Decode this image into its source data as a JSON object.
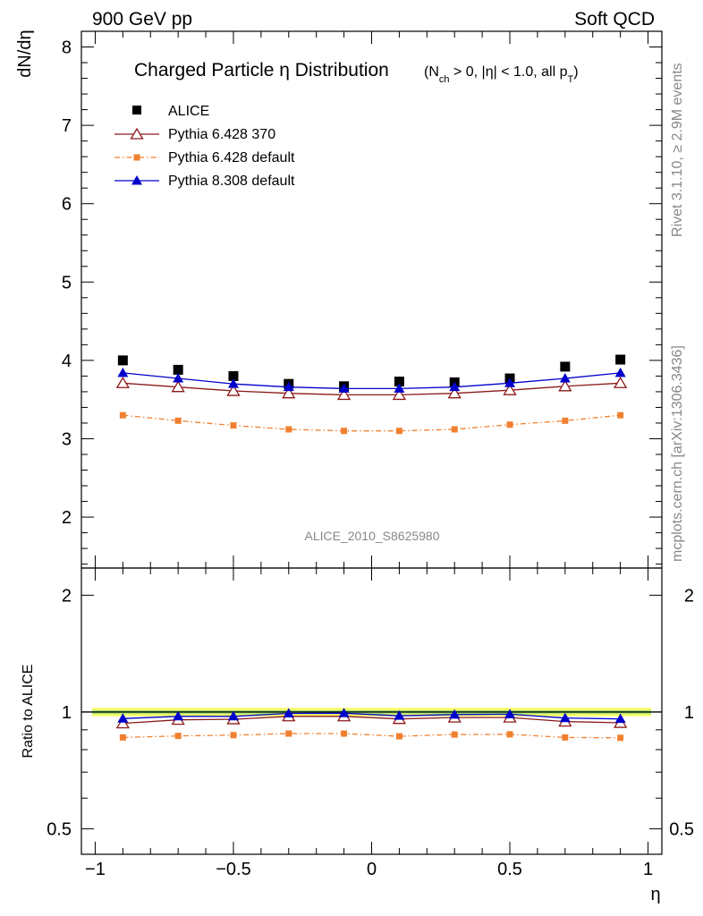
{
  "header": {
    "left": "900 GeV pp",
    "right": "Soft QCD"
  },
  "side_text": {
    "rivet": "Rivet 3.1.10, ≥ 2.9M events",
    "mcplots": "mcplots.cern.ch [arXiv:1306.3436]"
  },
  "chart_data": [
    {
      "type": "scatter",
      "title": "Charged Particle η Distribution",
      "subtitle_parts": {
        "open": "(N",
        "sub1": "ch",
        "mid": " > 0, |η| < 1.0, all p",
        "sub2": "T",
        "close": ")"
      },
      "ylabel": "dN/dη",
      "ylim": [
        1.35,
        8.2
      ],
      "yticks": [
        2,
        3,
        4,
        5,
        6,
        7,
        8
      ],
      "xlim": [
        -1.05,
        1.05
      ],
      "watermark": "ALICE_2010_S8625980",
      "legend_position": "top-left",
      "x": [
        -0.9,
        -0.7,
        -0.5,
        -0.3,
        -0.1,
        0.1,
        0.3,
        0.5,
        0.7,
        0.9
      ],
      "series": [
        {
          "name": "ALICE",
          "color": "#000000",
          "marker": "square",
          "line": "none",
          "values": [
            4.0,
            3.88,
            3.8,
            3.7,
            3.67,
            3.73,
            3.72,
            3.77,
            3.92,
            4.01
          ]
        },
        {
          "name": "Pythia 6.428 370",
          "color": "#8b1a1a",
          "marker": "open-triangle",
          "line": "solid",
          "values": [
            3.71,
            3.66,
            3.61,
            3.58,
            3.56,
            3.56,
            3.58,
            3.62,
            3.67,
            3.71
          ]
        },
        {
          "name": "Pythia 6.428 default",
          "color": "#f08030",
          "marker": "small-square",
          "line": "dashdot",
          "values": [
            3.3,
            3.23,
            3.17,
            3.12,
            3.1,
            3.1,
            3.12,
            3.18,
            3.23,
            3.3
          ]
        },
        {
          "name": "Pythia 8.308 default",
          "color": "#0000cc",
          "marker": "triangle",
          "line": "solid",
          "values": [
            3.84,
            3.77,
            3.7,
            3.66,
            3.64,
            3.64,
            3.66,
            3.71,
            3.77,
            3.84
          ]
        }
      ]
    },
    {
      "type": "scatter",
      "ylabel": "Ratio to ALICE",
      "xlabel": "η",
      "ylim": [
        0.43,
        2.35
      ],
      "yticks": [
        0.5,
        1,
        2
      ],
      "yticklabels": [
        "0.5",
        "1",
        "2"
      ],
      "xlim": [
        -1.05,
        1.05
      ],
      "xticks": [
        -1,
        -0.5,
        0,
        0.5,
        1
      ],
      "xticklabels": [
        "−1",
        "−0.5",
        "0",
        "0.5",
        "1"
      ],
      "band": {
        "low": 0.975,
        "high": 1.025,
        "inner_low": 0.988,
        "inner_high": 1.012
      },
      "x": [
        -0.9,
        -0.7,
        -0.5,
        -0.3,
        -0.1,
        0.1,
        0.3,
        0.5,
        0.7,
        0.9
      ],
      "series": [
        {
          "name": "Pythia 6.428 370",
          "color": "#8b1a1a",
          "marker": "open-triangle",
          "line": "solid",
          "values": [
            0.935,
            0.955,
            0.958,
            0.975,
            0.975,
            0.96,
            0.968,
            0.968,
            0.945,
            0.938
          ]
        },
        {
          "name": "Pythia 6.428 default",
          "color": "#f08030",
          "marker": "small-square",
          "line": "dashdot",
          "values": [
            0.86,
            0.868,
            0.872,
            0.88,
            0.88,
            0.866,
            0.875,
            0.876,
            0.86,
            0.858
          ]
        },
        {
          "name": "Pythia 8.308 default",
          "color": "#0000cc",
          "marker": "triangle",
          "line": "solid",
          "values": [
            0.962,
            0.975,
            0.975,
            0.992,
            0.993,
            0.978,
            0.985,
            0.987,
            0.965,
            0.96
          ]
        }
      ]
    }
  ]
}
